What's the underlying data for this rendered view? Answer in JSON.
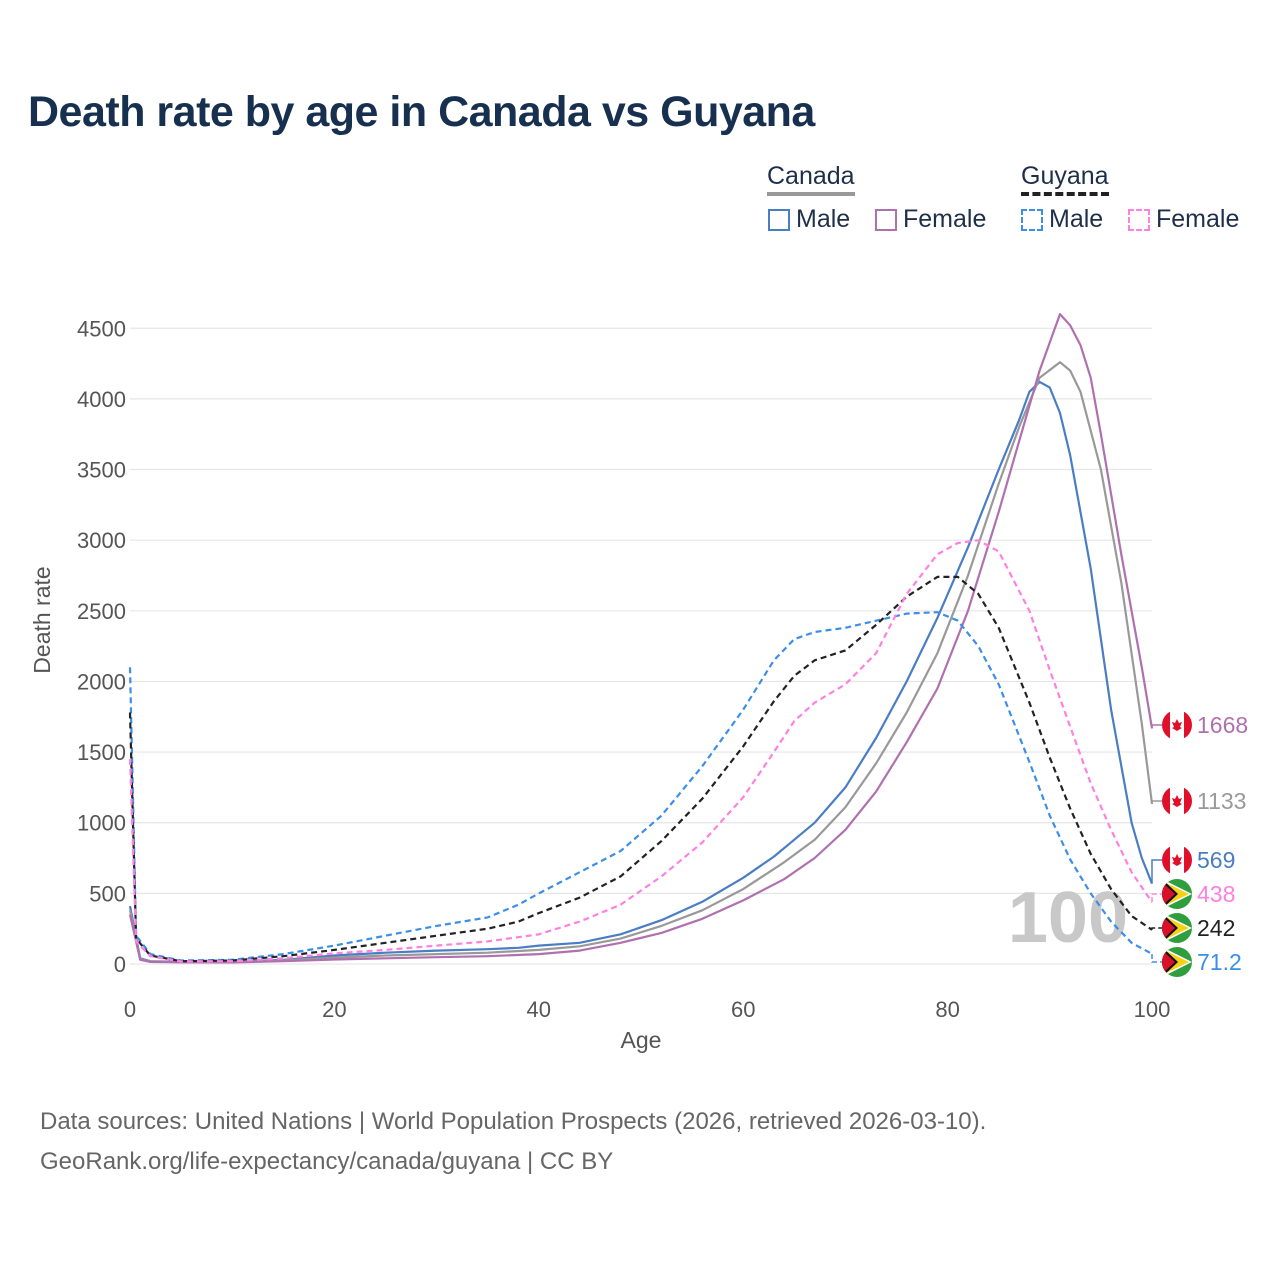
{
  "title": "Death rate by age in Canada vs Guyana",
  "legend": {
    "groups": [
      {
        "name": "Canada",
        "underline_color": "#999999",
        "underline_style": "solid"
      },
      {
        "name": "Guyana",
        "underline_color": "#222222",
        "underline_style": "dashed"
      }
    ],
    "items": [
      {
        "label": "Male",
        "color": "#4a7dc4",
        "style": "solid"
      },
      {
        "label": "Female",
        "color": "#b070b0",
        "style": "solid"
      },
      {
        "label": "Male",
        "color": "#3c8ee8",
        "style": "dashed"
      },
      {
        "label": "Female",
        "color": "#ff80e0",
        "style": "dashed"
      }
    ]
  },
  "year_watermark": "100",
  "sources": {
    "line1": "Data sources: United Nations | World Population Prospects (2026, retrieved 2026-03-10).",
    "line2": "GeoRank.org/life-expectancy/canada/guyana | CC BY"
  },
  "chart_data": {
    "type": "line",
    "title": "Death rate by age in Canada vs Guyana",
    "xlabel": "Age",
    "ylabel": "Death rate",
    "xlim": [
      0,
      100
    ],
    "ylim": [
      0,
      4700
    ],
    "xticks": [
      0,
      20,
      40,
      60,
      80,
      100
    ],
    "yticks": [
      0,
      500,
      1000,
      1500,
      2000,
      2500,
      3000,
      3500,
      4000,
      4500
    ],
    "grid": true,
    "series": [
      {
        "name": "Canada Male",
        "country": "Canada",
        "color": "#4a7dc4",
        "dash": false,
        "flag": "canada",
        "end_label": "569",
        "points": [
          [
            0,
            410
          ],
          [
            1,
            40
          ],
          [
            2,
            20
          ],
          [
            5,
            15
          ],
          [
            10,
            15
          ],
          [
            15,
            30
          ],
          [
            20,
            60
          ],
          [
            25,
            80
          ],
          [
            30,
            95
          ],
          [
            35,
            105
          ],
          [
            38,
            115
          ],
          [
            40,
            130
          ],
          [
            44,
            150
          ],
          [
            48,
            210
          ],
          [
            52,
            310
          ],
          [
            56,
            440
          ],
          [
            60,
            610
          ],
          [
            63,
            760
          ],
          [
            65,
            880
          ],
          [
            67,
            1000
          ],
          [
            70,
            1250
          ],
          [
            73,
            1600
          ],
          [
            76,
            2000
          ],
          [
            79,
            2450
          ],
          [
            82,
            2950
          ],
          [
            85,
            3500
          ],
          [
            87,
            3850
          ],
          [
            88,
            4050
          ],
          [
            89,
            4120
          ],
          [
            90,
            4080
          ],
          [
            91,
            3900
          ],
          [
            92,
            3600
          ],
          [
            94,
            2800
          ],
          [
            96,
            1800
          ],
          [
            98,
            1000
          ],
          [
            99,
            750
          ],
          [
            100,
            569
          ]
        ]
      },
      {
        "name": "Canada Both",
        "country": "Canada",
        "color": "#999999",
        "dash": false,
        "flag": "canada",
        "end_label": "1133",
        "points": [
          [
            0,
            380
          ],
          [
            1,
            35
          ],
          [
            2,
            18
          ],
          [
            5,
            13
          ],
          [
            10,
            13
          ],
          [
            15,
            25
          ],
          [
            20,
            45
          ],
          [
            25,
            60
          ],
          [
            30,
            70
          ],
          [
            35,
            80
          ],
          [
            40,
            100
          ],
          [
            44,
            125
          ],
          [
            48,
            180
          ],
          [
            52,
            270
          ],
          [
            56,
            380
          ],
          [
            60,
            530
          ],
          [
            64,
            720
          ],
          [
            67,
            880
          ],
          [
            70,
            1110
          ],
          [
            73,
            1420
          ],
          [
            76,
            1780
          ],
          [
            79,
            2200
          ],
          [
            82,
            2750
          ],
          [
            85,
            3400
          ],
          [
            87,
            3800
          ],
          [
            89,
            4150
          ],
          [
            91,
            4260
          ],
          [
            92,
            4200
          ],
          [
            93,
            4050
          ],
          [
            95,
            3500
          ],
          [
            97,
            2700
          ],
          [
            99,
            1700
          ],
          [
            100,
            1133
          ]
        ]
      },
      {
        "name": "Canada Female",
        "country": "Canada",
        "color": "#b070b0",
        "dash": false,
        "flag": "canada",
        "end_label": "1668",
        "points": [
          [
            0,
            350
          ],
          [
            1,
            30
          ],
          [
            2,
            15
          ],
          [
            5,
            12
          ],
          [
            10,
            11
          ],
          [
            15,
            20
          ],
          [
            20,
            32
          ],
          [
            25,
            40
          ],
          [
            30,
            48
          ],
          [
            35,
            55
          ],
          [
            40,
            70
          ],
          [
            44,
            95
          ],
          [
            48,
            150
          ],
          [
            52,
            220
          ],
          [
            56,
            320
          ],
          [
            60,
            450
          ],
          [
            64,
            600
          ],
          [
            67,
            750
          ],
          [
            70,
            950
          ],
          [
            73,
            1220
          ],
          [
            76,
            1570
          ],
          [
            79,
            1950
          ],
          [
            82,
            2500
          ],
          [
            85,
            3200
          ],
          [
            87,
            3700
          ],
          [
            89,
            4200
          ],
          [
            90,
            4400
          ],
          [
            91,
            4600
          ],
          [
            92,
            4520
          ],
          [
            93,
            4380
          ],
          [
            94,
            4150
          ],
          [
            95,
            3750
          ],
          [
            97,
            2900
          ],
          [
            99,
            2100
          ],
          [
            100,
            1668
          ]
        ]
      },
      {
        "name": "Guyana Male",
        "country": "Guyana",
        "color": "#3c8ee8",
        "dash": true,
        "flag": "guyana",
        "end_label": "71.2",
        "points": [
          [
            0,
            2100
          ],
          [
            0.6,
            200
          ],
          [
            2,
            70
          ],
          [
            5,
            25
          ],
          [
            10,
            30
          ],
          [
            15,
            70
          ],
          [
            20,
            130
          ],
          [
            25,
            200
          ],
          [
            30,
            270
          ],
          [
            35,
            330
          ],
          [
            38,
            420
          ],
          [
            40,
            500
          ],
          [
            44,
            650
          ],
          [
            48,
            800
          ],
          [
            52,
            1050
          ],
          [
            56,
            1400
          ],
          [
            60,
            1800
          ],
          [
            63,
            2150
          ],
          [
            65,
            2300
          ],
          [
            67,
            2350
          ],
          [
            70,
            2380
          ],
          [
            73,
            2430
          ],
          [
            76,
            2480
          ],
          [
            79,
            2490
          ],
          [
            81,
            2430
          ],
          [
            83,
            2250
          ],
          [
            85,
            1980
          ],
          [
            88,
            1430
          ],
          [
            90,
            1050
          ],
          [
            92,
            740
          ],
          [
            94,
            500
          ],
          [
            96,
            300
          ],
          [
            98,
            150
          ],
          [
            100,
            71.2
          ]
        ]
      },
      {
        "name": "Guyana Both",
        "country": "Guyana",
        "color": "#222222",
        "dash": true,
        "flag": "guyana",
        "end_label": "242",
        "points": [
          [
            0,
            1780
          ],
          [
            0.6,
            180
          ],
          [
            2,
            60
          ],
          [
            5,
            20
          ],
          [
            10,
            25
          ],
          [
            15,
            55
          ],
          [
            20,
            100
          ],
          [
            25,
            150
          ],
          [
            30,
            200
          ],
          [
            35,
            250
          ],
          [
            38,
            300
          ],
          [
            40,
            360
          ],
          [
            44,
            470
          ],
          [
            48,
            620
          ],
          [
            52,
            870
          ],
          [
            56,
            1170
          ],
          [
            60,
            1540
          ],
          [
            63,
            1860
          ],
          [
            65,
            2040
          ],
          [
            67,
            2150
          ],
          [
            70,
            2220
          ],
          [
            73,
            2400
          ],
          [
            76,
            2600
          ],
          [
            79,
            2740
          ],
          [
            81,
            2740
          ],
          [
            83,
            2620
          ],
          [
            85,
            2380
          ],
          [
            88,
            1850
          ],
          [
            90,
            1460
          ],
          [
            92,
            1100
          ],
          [
            94,
            780
          ],
          [
            96,
            530
          ],
          [
            98,
            340
          ],
          [
            100,
            242
          ]
        ]
      },
      {
        "name": "Guyana Female",
        "country": "Guyana",
        "color": "#ff80e0",
        "dash": true,
        "flag": "guyana",
        "end_label": "438",
        "points": [
          [
            0,
            1450
          ],
          [
            0.6,
            160
          ],
          [
            2,
            55
          ],
          [
            5,
            18
          ],
          [
            10,
            20
          ],
          [
            15,
            40
          ],
          [
            20,
            75
          ],
          [
            25,
            100
          ],
          [
            30,
            130
          ],
          [
            35,
            160
          ],
          [
            40,
            210
          ],
          [
            44,
            300
          ],
          [
            48,
            420
          ],
          [
            52,
            620
          ],
          [
            56,
            860
          ],
          [
            60,
            1180
          ],
          [
            63,
            1500
          ],
          [
            65,
            1720
          ],
          [
            67,
            1850
          ],
          [
            70,
            1980
          ],
          [
            73,
            2200
          ],
          [
            76,
            2620
          ],
          [
            79,
            2900
          ],
          [
            81,
            2980
          ],
          [
            83,
            3000
          ],
          [
            85,
            2920
          ],
          [
            88,
            2500
          ],
          [
            90,
            2080
          ],
          [
            92,
            1680
          ],
          [
            94,
            1280
          ],
          [
            96,
            950
          ],
          [
            98,
            650
          ],
          [
            100,
            438
          ]
        ]
      }
    ]
  }
}
